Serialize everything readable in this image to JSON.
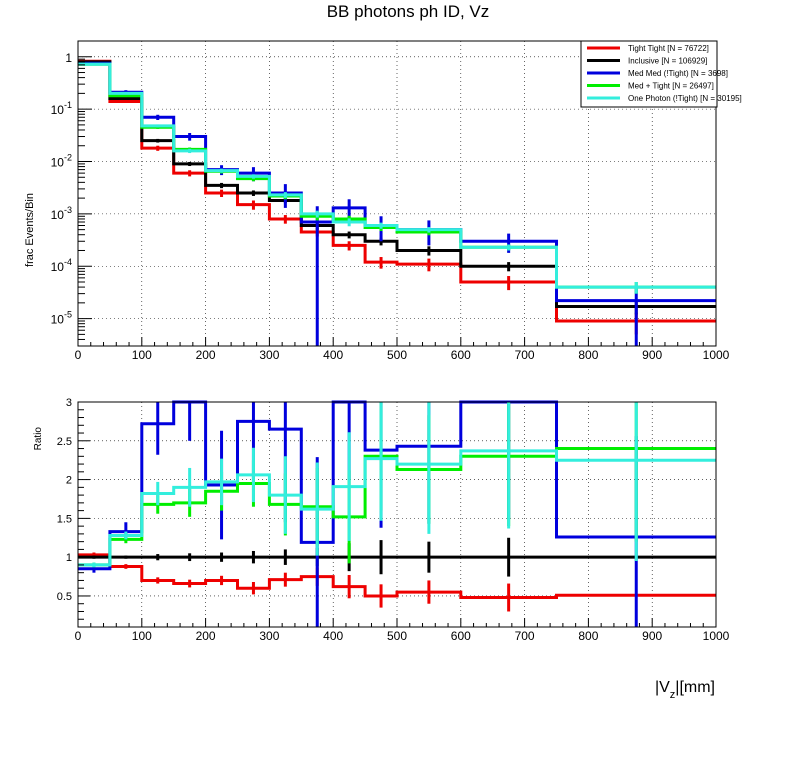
{
  "chart_data": [
    {
      "type": "line",
      "title": "BB photons ph ID, Vz",
      "xlabel": "",
      "ylabel": "frac Events/Bin",
      "yscale": "log",
      "xlim": [
        0,
        1000
      ],
      "ylim": [
        3e-06,
        2
      ],
      "grid": true,
      "legend_position": "top-right",
      "bin_edges": [
        0,
        50,
        100,
        150,
        200,
        250,
        300,
        350,
        400,
        450,
        500,
        600,
        750,
        1000
      ],
      "x_ticks": [
        "0",
        "100",
        "200",
        "300",
        "400",
        "500",
        "600",
        "700",
        "800",
        "900",
        "1000"
      ],
      "y_ticks": [
        {
          "base": "10",
          "exp": "-5",
          "value": 1e-05
        },
        {
          "base": "10",
          "exp": "-4",
          "value": 0.0001
        },
        {
          "base": "10",
          "exp": "-3",
          "value": 0.001
        },
        {
          "base": "10",
          "exp": "-2",
          "value": 0.01
        },
        {
          "base": "10",
          "exp": "-1",
          "value": 0.1
        },
        {
          "base": "1",
          "exp": "",
          "value": 1
        }
      ],
      "series": [
        {
          "name": "Tight Tight [N = 76722]",
          "color": "#ee0000",
          "values": [
            0.82,
            0.14,
            0.018,
            0.006,
            0.0025,
            0.0015,
            0.0008,
            0.00045,
            0.00025,
            0.00012,
            0.00011,
            5e-05,
            9e-06
          ],
          "errors": [
            0.02,
            0.005,
            0.002,
            0.0008,
            0.0004,
            0.0003,
            0.00015,
            8e-05,
            5e-05,
            3e-05,
            3e-05,
            1.5e-05,
            4e-06
          ]
        },
        {
          "name": "Inclusive [N = 106929]",
          "color": "#000000",
          "values": [
            0.8,
            0.16,
            0.025,
            0.009,
            0.0035,
            0.0025,
            0.0018,
            0.0006,
            0.0004,
            0.0003,
            0.0002,
            0.0001,
            1.7e-05
          ],
          "errors": [
            0.02,
            0.005,
            0.002,
            0.0008,
            0.0004,
            0.0003,
            0.0002,
            0.0001,
            6e-05,
            5e-05,
            4e-05,
            2e-05,
            5e-06
          ]
        },
        {
          "name": "Med Med (!Tight) [N = 3698]",
          "color": "#0000dd",
          "values": [
            0.75,
            0.21,
            0.07,
            0.03,
            0.007,
            0.006,
            0.0025,
            0.0007,
            0.0013,
            0.0006,
            0.0005,
            0.0003,
            2.2e-05
          ],
          "errors": [
            0.03,
            0.02,
            0.008,
            0.005,
            0.0015,
            0.0018,
            0.0012,
            0.0007,
            0.0006,
            0.0003,
            0.00025,
            0.00012,
            2e-05
          ]
        },
        {
          "name": "Med + Tight [N = 26497]",
          "color": "#00ee00",
          "values": [
            0.72,
            0.18,
            0.045,
            0.017,
            0.0065,
            0.0047,
            0.0022,
            0.0009,
            0.0008,
            0.00055,
            0.00045,
            0.00023,
            4e-05
          ],
          "errors": [
            0.02,
            0.008,
            0.003,
            0.0015,
            0.0006,
            0.0005,
            0.0003,
            0.00015,
            0.00012,
            8e-05,
            6e-05,
            3e-05,
            1e-05
          ]
        },
        {
          "name": "One Photon (!Tight) [N = 30195]",
          "color": "#33eedd",
          "values": [
            0.72,
            0.2,
            0.048,
            0.016,
            0.0067,
            0.0052,
            0.0023,
            0.001,
            0.0007,
            0.0006,
            0.0005,
            0.00023,
            4e-05
          ],
          "errors": [
            0.02,
            0.008,
            0.003,
            0.0015,
            0.0006,
            0.0005,
            0.0003,
            0.00015,
            0.00012,
            8e-05,
            6e-05,
            3e-05,
            1e-05
          ]
        }
      ]
    },
    {
      "type": "line",
      "title": "",
      "xlabel": "|V_z|[mm]",
      "xlabel_main": "|V",
      "xlabel_sub": "z",
      "xlabel_tail": "|[mm]",
      "ylabel": "Ratio",
      "yscale": "linear",
      "xlim": [
        0,
        1000
      ],
      "ylim": [
        0.1,
        3
      ],
      "grid": true,
      "bin_edges": [
        0,
        50,
        100,
        150,
        200,
        250,
        300,
        350,
        400,
        450,
        500,
        600,
        750,
        1000
      ],
      "x_ticks": [
        "0",
        "100",
        "200",
        "300",
        "400",
        "500",
        "600",
        "700",
        "800",
        "900",
        "1000"
      ],
      "y_ticks": [
        "0.5",
        "1",
        "1.5",
        "2",
        "2.5",
        "3"
      ],
      "series": [
        {
          "name": "Tight Tight",
          "color": "#ee0000",
          "values": [
            1.03,
            0.88,
            0.7,
            0.66,
            0.7,
            0.6,
            0.71,
            0.75,
            0.62,
            0.5,
            0.55,
            0.48,
            0.51
          ],
          "errors": [
            0.03,
            0.03,
            0.04,
            0.05,
            0.06,
            0.08,
            0.09,
            0.12,
            0.15,
            0.15,
            0.15,
            0.18,
            0.0
          ]
        },
        {
          "name": "Inclusive",
          "color": "#000000",
          "values": [
            1.0,
            1.0,
            1.0,
            1.0,
            1.0,
            1.0,
            1.0,
            1.0,
            1.0,
            1.0,
            1.0,
            1.0,
            1.0
          ],
          "errors": [
            0.02,
            0.02,
            0.04,
            0.05,
            0.06,
            0.08,
            0.1,
            0.12,
            0.18,
            0.22,
            0.2,
            0.25,
            0.0
          ]
        },
        {
          "name": "Med Med (!Tight)",
          "color": "#0000dd",
          "values": [
            0.85,
            1.33,
            2.72,
            3.1,
            1.93,
            2.75,
            2.65,
            1.19,
            3.2,
            2.38,
            2.43,
            3.0,
            1.26
          ],
          "errors": [
            0.05,
            0.12,
            0.4,
            0.6,
            0.7,
            0.8,
            1.2,
            1.1,
            1.2,
            1.0,
            1.0,
            1.5,
            1.3
          ]
        },
        {
          "name": "Med + Tight",
          "color": "#00ee00",
          "values": [
            0.9,
            1.23,
            1.68,
            1.7,
            1.85,
            1.95,
            1.68,
            1.65,
            1.52,
            2.3,
            2.13,
            2.3,
            2.4
          ],
          "errors": [
            0.03,
            0.05,
            0.12,
            0.18,
            0.25,
            0.3,
            0.4,
            0.5,
            0.6,
            0.7,
            0.7,
            0.9,
            1.2
          ]
        },
        {
          "name": "One Photon (!Tight)",
          "color": "#33eedd",
          "values": [
            0.9,
            1.28,
            1.82,
            1.9,
            1.97,
            2.06,
            1.8,
            1.62,
            1.91,
            2.27,
            2.2,
            2.37,
            2.25
          ],
          "errors": [
            0.03,
            0.05,
            0.15,
            0.25,
            0.3,
            0.35,
            0.5,
            0.6,
            0.7,
            0.8,
            0.9,
            1.0,
            1.3
          ]
        }
      ]
    }
  ]
}
